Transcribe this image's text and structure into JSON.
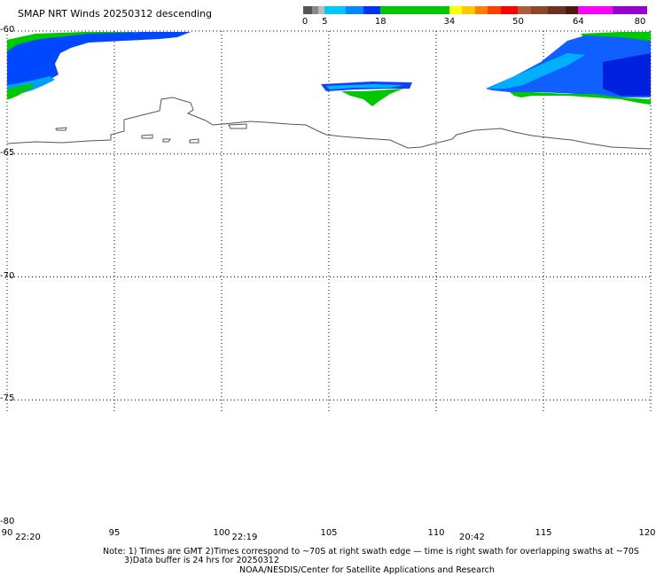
{
  "title": "SMAP NRT Winds  20250312 descending",
  "colorbar": {
    "labels": [
      {
        "text": "0",
        "value": 0
      },
      {
        "text": "5",
        "value": 5
      },
      {
        "text": "18",
        "value": 18
      },
      {
        "text": "34",
        "value": 34
      },
      {
        "text": "50",
        "value": 50
      },
      {
        "text": "64",
        "value": 64
      },
      {
        "text": "80",
        "value": 80
      }
    ],
    "segments": [
      {
        "from": 0,
        "to": 2,
        "color": "#555555"
      },
      {
        "from": 2,
        "to": 3.5,
        "color": "#888888"
      },
      {
        "from": 3.5,
        "to": 5,
        "color": "#bbbbbb"
      },
      {
        "from": 5,
        "to": 10,
        "color": "#00c8ff"
      },
      {
        "from": 10,
        "to": 14,
        "color": "#0088ff"
      },
      {
        "from": 14,
        "to": 18,
        "color": "#0030ff"
      },
      {
        "from": 18,
        "to": 34,
        "color": "#00c800"
      },
      {
        "from": 34,
        "to": 37,
        "color": "#ffff00"
      },
      {
        "from": 37,
        "to": 40,
        "color": "#ffc800"
      },
      {
        "from": 40,
        "to": 43,
        "color": "#ff8000"
      },
      {
        "from": 43,
        "to": 46,
        "color": "#ff4000"
      },
      {
        "from": 46,
        "to": 50,
        "color": "#ff0000"
      },
      {
        "from": 50,
        "to": 53,
        "color": "#b05a3c"
      },
      {
        "from": 53,
        "to": 57,
        "color": "#8c4628"
      },
      {
        "from": 57,
        "to": 61,
        "color": "#6e3020"
      },
      {
        "from": 61,
        "to": 64,
        "color": "#4a1a10"
      },
      {
        "from": 64,
        "to": 72,
        "color": "#ff00ff"
      },
      {
        "from": 72,
        "to": 80,
        "color": "#9600d2"
      }
    ]
  },
  "latitudes": [
    {
      "text": "-60",
      "value": -60
    },
    {
      "text": "-65",
      "value": -65
    },
    {
      "text": "-70",
      "value": -70
    },
    {
      "text": "-75",
      "value": -75
    },
    {
      "text": "-80",
      "value": -80
    }
  ],
  "longitudes": [
    {
      "text": "90",
      "value": 90
    },
    {
      "text": "95",
      "value": 95
    },
    {
      "text": "100",
      "value": 100
    },
    {
      "text": "105",
      "value": 105
    },
    {
      "text": "110",
      "value": 110
    },
    {
      "text": "115",
      "value": 115
    },
    {
      "text": "120",
      "value": 120
    }
  ],
  "times": [
    {
      "text": "22:20",
      "lon": 90.5
    },
    {
      "text": "22:19",
      "lon": 100.6
    },
    {
      "text": "20:42",
      "lon": 111.2
    }
  ],
  "notes": {
    "line1": "Note: 1) Times are GMT 2)Times correspond to ~70S at right swath edge — time is right swath for overlapping swaths at ~70S",
    "line2": "3)Data buffer is 24 hrs for 20250312",
    "line3": "NOAA/NESDIS/Center for Satellite Applications and Research"
  }
}
